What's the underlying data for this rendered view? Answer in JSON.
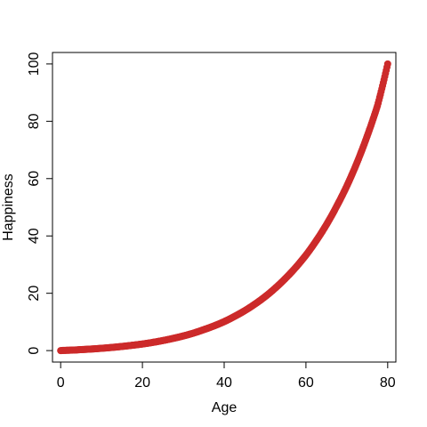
{
  "chart_data": {
    "type": "scatter",
    "title": "",
    "xlabel": "Age",
    "ylabel": "Happiness",
    "xlim": [
      -2,
      82
    ],
    "ylim": [
      -4,
      104
    ],
    "xticks": [
      0,
      20,
      40,
      60,
      80
    ],
    "yticks": [
      0,
      20,
      40,
      60,
      80,
      100
    ],
    "xtick_labels": [
      "0",
      "20",
      "40",
      "60",
      "80"
    ],
    "ytick_labels": [
      "0",
      "20",
      "40",
      "60",
      "80",
      "100"
    ],
    "grid": false,
    "legend": "none",
    "series": [
      {
        "color": "#cc2a2a",
        "x": [
          0,
          2.5,
          5,
          7.5,
          10,
          12.5,
          15,
          17.5,
          20,
          22.5,
          25,
          27.5,
          30,
          32.5,
          35,
          37.5,
          40,
          42.5,
          45,
          47.5,
          50,
          52.5,
          55,
          57.5,
          60,
          62.5,
          65,
          67.5,
          70,
          72.5,
          75,
          77.5,
          80
        ],
        "y": [
          0.0,
          0.15,
          0.35,
          0.55,
          0.8,
          1.1,
          1.45,
          1.85,
          2.3,
          2.85,
          3.5,
          4.25,
          5.1,
          6.1,
          7.3,
          8.6,
          10.1,
          11.9,
          13.9,
          16.2,
          18.8,
          21.8,
          25.2,
          29.0,
          33.3,
          38.3,
          43.9,
          50.3,
          57.4,
          65.6,
          74.9,
          85.4,
          100.0
        ]
      }
    ]
  }
}
